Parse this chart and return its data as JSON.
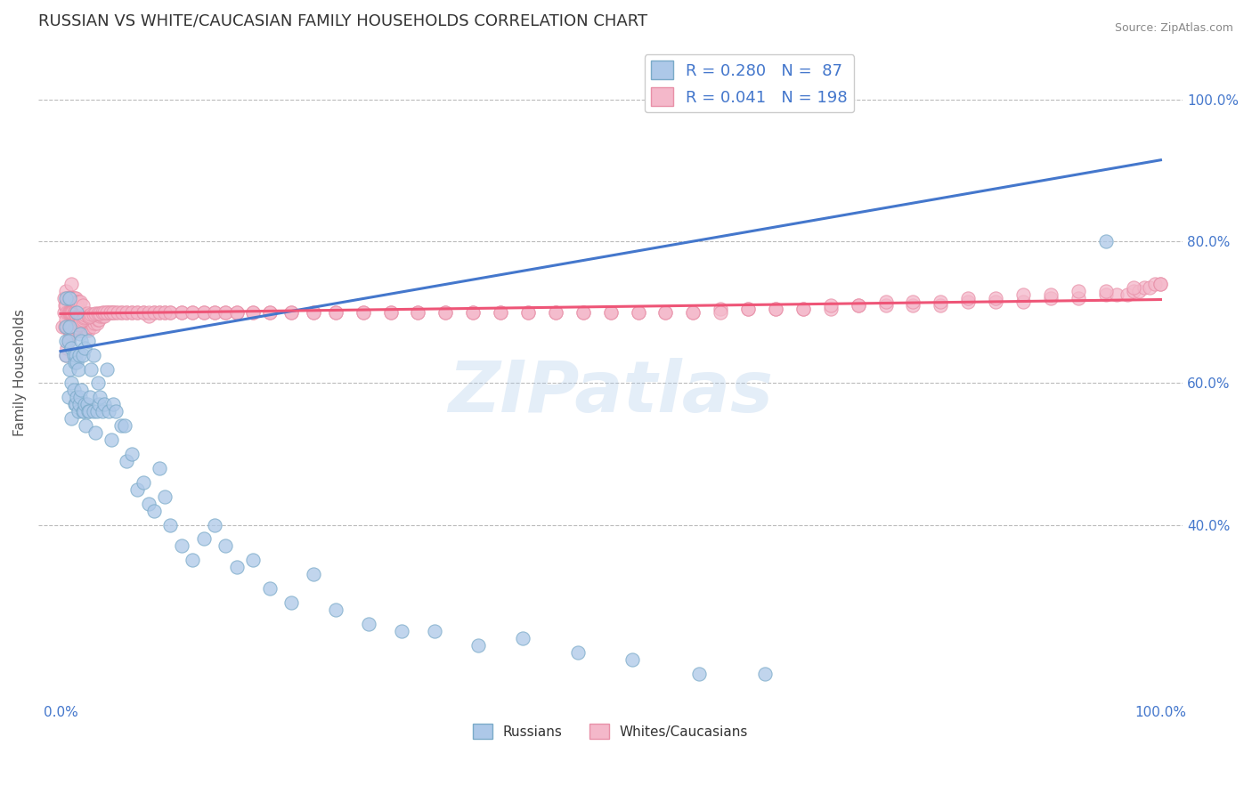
{
  "title": "RUSSIAN VS WHITE/CAUCASIAN FAMILY HOUSEHOLDS CORRELATION CHART",
  "source_text": "Source: ZipAtlas.com",
  "ylabel": "Family Households",
  "watermark": "ZIPatlas",
  "xlim": [
    -0.02,
    1.02
  ],
  "ylim": [
    0.15,
    1.08
  ],
  "xticks": [
    0.0,
    0.25,
    0.5,
    0.75,
    1.0
  ],
  "xtick_labels": [
    "0.0%",
    "",
    "",
    "",
    "100.0%"
  ],
  "yticks_right": [
    0.4,
    0.6,
    0.8,
    1.0
  ],
  "ytick_labels_right": [
    "40.0%",
    "60.0%",
    "80.0%",
    "100.0%"
  ],
  "legend_entries": [
    {
      "label": "R = 0.280   N =  87",
      "color": "#adc8e8",
      "edge": "#7aaac8"
    },
    {
      "label": "R = 0.041   N = 198",
      "color": "#f4b8ca",
      "edge": "#e890a8"
    }
  ],
  "russian_color": "#adc8e8",
  "russian_edge": "#7aaac8",
  "caucasian_color": "#f4b8ca",
  "caucasian_edge": "#e890a8",
  "trendline_russian_color": "#4477cc",
  "trendline_caucasian_color": "#ee5577",
  "background_color": "#ffffff",
  "grid_color": "#bbbbbb",
  "title_color": "#333333",
  "title_fontsize": 13,
  "axis_label_fontsize": 11,
  "tick_fontsize": 11,
  "legend_fontsize": 13,
  "trendline_russian": {
    "x_start": 0.0,
    "x_end": 1.0,
    "y_start": 0.645,
    "y_end": 0.915
  },
  "trendline_caucasian": {
    "x_start": 0.0,
    "x_end": 1.0,
    "y_start": 0.698,
    "y_end": 0.718
  },
  "russian_x": [
    0.005,
    0.005,
    0.005,
    0.005,
    0.007,
    0.007,
    0.008,
    0.008,
    0.008,
    0.01,
    0.01,
    0.01,
    0.012,
    0.012,
    0.013,
    0.013,
    0.014,
    0.014,
    0.015,
    0.015,
    0.015,
    0.016,
    0.016,
    0.017,
    0.017,
    0.018,
    0.018,
    0.019,
    0.019,
    0.02,
    0.02,
    0.021,
    0.022,
    0.022,
    0.023,
    0.024,
    0.025,
    0.025,
    0.026,
    0.027,
    0.028,
    0.03,
    0.03,
    0.032,
    0.033,
    0.034,
    0.035,
    0.036,
    0.038,
    0.04,
    0.042,
    0.044,
    0.046,
    0.048,
    0.05,
    0.055,
    0.058,
    0.06,
    0.065,
    0.07,
    0.075,
    0.08,
    0.085,
    0.09,
    0.095,
    0.1,
    0.11,
    0.12,
    0.13,
    0.14,
    0.15,
    0.16,
    0.175,
    0.19,
    0.21,
    0.23,
    0.25,
    0.28,
    0.31,
    0.34,
    0.38,
    0.42,
    0.47,
    0.52,
    0.58,
    0.64,
    0.95
  ],
  "russian_y": [
    0.64,
    0.66,
    0.68,
    0.72,
    0.58,
    0.66,
    0.62,
    0.68,
    0.72,
    0.55,
    0.6,
    0.65,
    0.59,
    0.64,
    0.57,
    0.63,
    0.57,
    0.64,
    0.58,
    0.63,
    0.7,
    0.56,
    0.62,
    0.57,
    0.64,
    0.58,
    0.67,
    0.59,
    0.66,
    0.56,
    0.64,
    0.56,
    0.57,
    0.65,
    0.54,
    0.57,
    0.56,
    0.66,
    0.56,
    0.58,
    0.62,
    0.56,
    0.64,
    0.53,
    0.56,
    0.6,
    0.57,
    0.58,
    0.56,
    0.57,
    0.62,
    0.56,
    0.52,
    0.57,
    0.56,
    0.54,
    0.54,
    0.49,
    0.5,
    0.45,
    0.46,
    0.43,
    0.42,
    0.48,
    0.44,
    0.4,
    0.37,
    0.35,
    0.38,
    0.4,
    0.37,
    0.34,
    0.35,
    0.31,
    0.29,
    0.33,
    0.28,
    0.26,
    0.25,
    0.25,
    0.23,
    0.24,
    0.22,
    0.21,
    0.19,
    0.19,
    0.8
  ],
  "caucasian_x": [
    0.002,
    0.003,
    0.003,
    0.004,
    0.004,
    0.005,
    0.005,
    0.005,
    0.006,
    0.006,
    0.006,
    0.007,
    0.007,
    0.007,
    0.008,
    0.008,
    0.008,
    0.009,
    0.009,
    0.009,
    0.01,
    0.01,
    0.01,
    0.01,
    0.011,
    0.011,
    0.011,
    0.012,
    0.012,
    0.012,
    0.013,
    0.013,
    0.013,
    0.014,
    0.014,
    0.014,
    0.015,
    0.015,
    0.015,
    0.016,
    0.016,
    0.016,
    0.017,
    0.017,
    0.018,
    0.018,
    0.018,
    0.019,
    0.019,
    0.02,
    0.02,
    0.02,
    0.021,
    0.021,
    0.022,
    0.022,
    0.023,
    0.023,
    0.024,
    0.025,
    0.025,
    0.026,
    0.027,
    0.028,
    0.029,
    0.03,
    0.031,
    0.032,
    0.033,
    0.034,
    0.035,
    0.036,
    0.038,
    0.04,
    0.042,
    0.044,
    0.046,
    0.048,
    0.05,
    0.055,
    0.06,
    0.065,
    0.07,
    0.075,
    0.08,
    0.085,
    0.09,
    0.095,
    0.1,
    0.11,
    0.12,
    0.13,
    0.14,
    0.15,
    0.16,
    0.175,
    0.19,
    0.21,
    0.23,
    0.25,
    0.275,
    0.3,
    0.325,
    0.35,
    0.375,
    0.4,
    0.425,
    0.45,
    0.475,
    0.5,
    0.525,
    0.55,
    0.575,
    0.6,
    0.625,
    0.65,
    0.675,
    0.7,
    0.725,
    0.75,
    0.775,
    0.8,
    0.825,
    0.85,
    0.875,
    0.9,
    0.925,
    0.95,
    0.96,
    0.97,
    0.975,
    0.98,
    0.985,
    0.99,
    0.995,
    1.0,
    0.005,
    0.006,
    0.007,
    0.008,
    0.009,
    0.01,
    0.011,
    0.012,
    0.013,
    0.014,
    0.015,
    0.016,
    0.017,
    0.018,
    0.019,
    0.02,
    0.021,
    0.022,
    0.023,
    0.024,
    0.025,
    0.026,
    0.027,
    0.028,
    0.03,
    0.032,
    0.034,
    0.036,
    0.038,
    0.04,
    0.042,
    0.045,
    0.048,
    0.052,
    0.056,
    0.06,
    0.065,
    0.07,
    0.075,
    0.08,
    0.085,
    0.09,
    0.095,
    0.1,
    0.11,
    0.12,
    0.13,
    0.14,
    0.15,
    0.16,
    0.175,
    0.19,
    0.21,
    0.23,
    0.25,
    0.275,
    0.3,
    0.325,
    0.35,
    0.375,
    0.4,
    0.425,
    0.45,
    0.475,
    0.5,
    0.525,
    0.55,
    0.575,
    0.6,
    0.625,
    0.65,
    0.675,
    0.7,
    0.725,
    0.75,
    0.775,
    0.8,
    0.825,
    0.85,
    0.875,
    0.9,
    0.925,
    0.95,
    0.975,
    1.0
  ],
  "caucasian_y": [
    0.68,
    0.7,
    0.72,
    0.68,
    0.71,
    0.69,
    0.71,
    0.73,
    0.68,
    0.7,
    0.72,
    0.68,
    0.7,
    0.72,
    0.68,
    0.7,
    0.72,
    0.68,
    0.7,
    0.72,
    0.68,
    0.7,
    0.72,
    0.74,
    0.68,
    0.7,
    0.72,
    0.68,
    0.7,
    0.72,
    0.68,
    0.7,
    0.72,
    0.68,
    0.7,
    0.72,
    0.675,
    0.695,
    0.715,
    0.675,
    0.695,
    0.715,
    0.675,
    0.695,
    0.675,
    0.695,
    0.715,
    0.675,
    0.695,
    0.675,
    0.69,
    0.71,
    0.675,
    0.695,
    0.675,
    0.695,
    0.675,
    0.695,
    0.68,
    0.675,
    0.695,
    0.68,
    0.68,
    0.685,
    0.69,
    0.68,
    0.685,
    0.69,
    0.685,
    0.69,
    0.69,
    0.695,
    0.695,
    0.695,
    0.7,
    0.7,
    0.7,
    0.7,
    0.7,
    0.7,
    0.7,
    0.7,
    0.7,
    0.7,
    0.695,
    0.7,
    0.7,
    0.7,
    0.7,
    0.7,
    0.7,
    0.7,
    0.7,
    0.7,
    0.7,
    0.7,
    0.7,
    0.7,
    0.7,
    0.7,
    0.7,
    0.7,
    0.7,
    0.7,
    0.7,
    0.7,
    0.7,
    0.7,
    0.7,
    0.7,
    0.7,
    0.7,
    0.7,
    0.705,
    0.705,
    0.705,
    0.705,
    0.705,
    0.71,
    0.71,
    0.71,
    0.71,
    0.715,
    0.715,
    0.715,
    0.72,
    0.72,
    0.725,
    0.725,
    0.725,
    0.73,
    0.73,
    0.735,
    0.735,
    0.74,
    0.74,
    0.64,
    0.65,
    0.66,
    0.665,
    0.67,
    0.67,
    0.672,
    0.674,
    0.676,
    0.678,
    0.68,
    0.682,
    0.684,
    0.686,
    0.688,
    0.69,
    0.692,
    0.694,
    0.696,
    0.698,
    0.695,
    0.693,
    0.695,
    0.697,
    0.697,
    0.698,
    0.698,
    0.699,
    0.7,
    0.7,
    0.7,
    0.7,
    0.7,
    0.7,
    0.7,
    0.7,
    0.7,
    0.7,
    0.7,
    0.7,
    0.7,
    0.7,
    0.7,
    0.7,
    0.7,
    0.7,
    0.7,
    0.7,
    0.7,
    0.7,
    0.7,
    0.7,
    0.7,
    0.7,
    0.7,
    0.7,
    0.7,
    0.7,
    0.7,
    0.7,
    0.7,
    0.7,
    0.7,
    0.7,
    0.7,
    0.7,
    0.7,
    0.7,
    0.7,
    0.705,
    0.705,
    0.705,
    0.71,
    0.71,
    0.715,
    0.715,
    0.715,
    0.72,
    0.72,
    0.725,
    0.725,
    0.73,
    0.73,
    0.735,
    0.74
  ]
}
